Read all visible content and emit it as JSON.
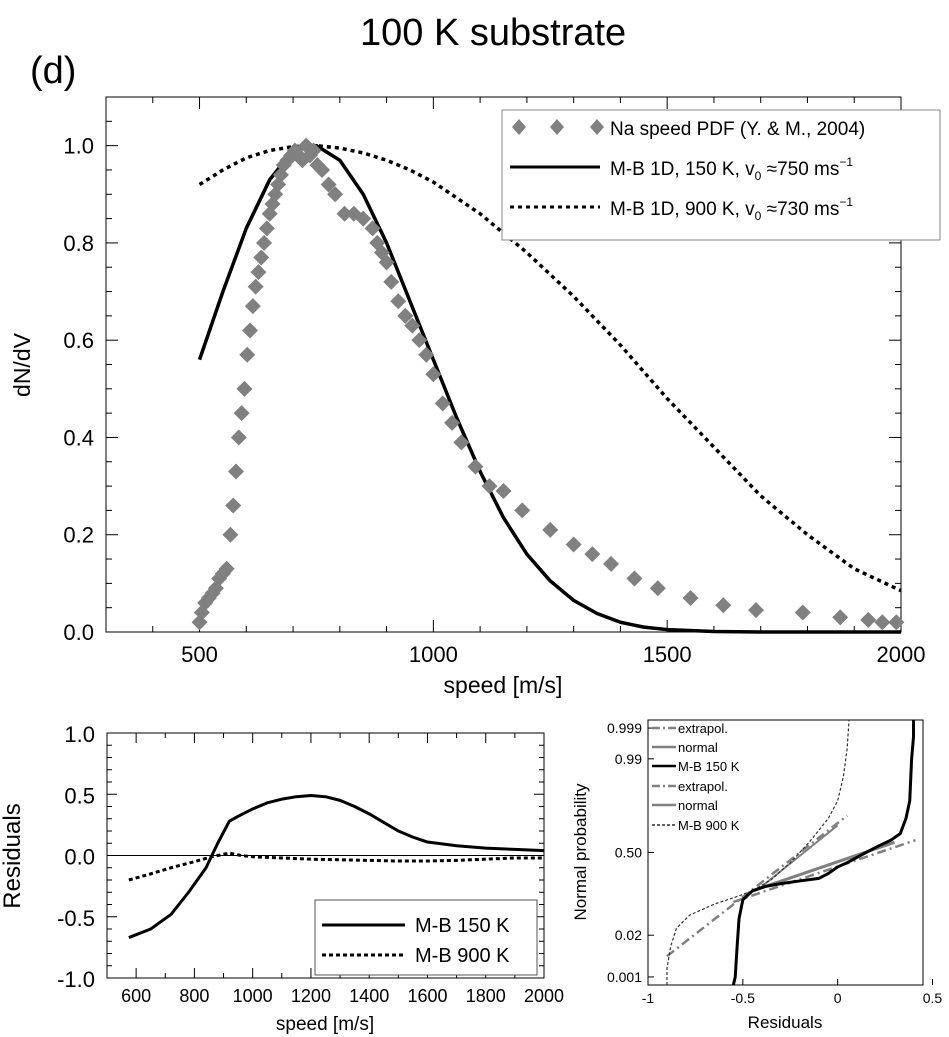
{
  "figure": {
    "title": "100 K substrate",
    "panel_label": "(d)"
  },
  "colors": {
    "data_gray": "#808080",
    "mb150": "#000000",
    "mb900": "#000000",
    "normal_gray": "#808080"
  },
  "chart_data": [
    {
      "id": "main",
      "type": "scatter+line",
      "xlabel": "speed [m/s]",
      "ylabel": "dN/dV",
      "xlim": [
        300,
        2000
      ],
      "ylim": [
        0,
        1.1
      ],
      "xticks": [
        500,
        1000,
        1500,
        2000
      ],
      "xtick_labels": [
        "500",
        "1000",
        "1500",
        "2000"
      ],
      "yticks": [
        0,
        0.2,
        0.4,
        0.6,
        0.8,
        1.0
      ],
      "ytick_labels": [
        "0.0",
        "0.2",
        "0.4",
        "0.6",
        "0.8",
        "1.0"
      ],
      "legend": {
        "placement": "top-right",
        "entries": [
          {
            "label": "Na speed PDF (Y. & M., 2004)",
            "style": "diamond"
          },
          {
            "label_parts": [
              "M-B 1D, 150 K, v",
              "0",
              " ≈750 ms",
              "−1"
            ],
            "style": "solid"
          },
          {
            "label_parts": [
              "M-B 1D, 900 K, v",
              "0",
              " ≈730 ms",
              "−1"
            ],
            "style": "dotted"
          }
        ]
      },
      "series": [
        {
          "name": "Na speed PDF (Y. & M., 2004)",
          "kind": "scatter",
          "x": [
            500,
            505,
            512,
            520,
            528,
            535,
            542,
            550,
            558,
            566,
            572,
            578,
            584,
            590,
            596,
            602,
            608,
            614,
            620,
            626,
            632,
            638,
            644,
            650,
            656,
            662,
            668,
            674,
            680,
            688,
            696,
            704,
            712,
            720,
            728,
            736,
            744,
            752,
            762,
            776,
            790,
            810,
            830,
            850,
            870,
            880,
            890,
            900,
            910,
            925,
            940,
            955,
            970,
            985,
            1000,
            1020,
            1040,
            1060,
            1090,
            1120,
            1150,
            1190,
            1250,
            1300,
            1340,
            1380,
            1430,
            1480,
            1550,
            1620,
            1690,
            1790,
            1870,
            1930,
            1960,
            1990
          ],
          "y": [
            0.02,
            0.04,
            0.06,
            0.07,
            0.08,
            0.09,
            0.11,
            0.12,
            0.13,
            0.2,
            0.26,
            0.33,
            0.4,
            0.45,
            0.5,
            0.57,
            0.62,
            0.67,
            0.71,
            0.74,
            0.77,
            0.8,
            0.83,
            0.86,
            0.88,
            0.9,
            0.92,
            0.94,
            0.96,
            0.97,
            0.98,
            0.99,
            0.98,
            0.97,
            1.0,
            0.98,
            0.99,
            0.96,
            0.95,
            0.92,
            0.9,
            0.86,
            0.86,
            0.85,
            0.83,
            0.8,
            0.78,
            0.76,
            0.72,
            0.68,
            0.65,
            0.63,
            0.6,
            0.57,
            0.53,
            0.47,
            0.43,
            0.39,
            0.34,
            0.3,
            0.29,
            0.25,
            0.21,
            0.18,
            0.16,
            0.14,
            0.11,
            0.09,
            0.07,
            0.055,
            0.045,
            0.04,
            0.03,
            0.025,
            0.02,
            0.02
          ]
        },
        {
          "name": "M-B 1D, 150 K",
          "kind": "line",
          "x": [
            500,
            550,
            600,
            650,
            700,
            750,
            800,
            850,
            900,
            950,
            1000,
            1050,
            1100,
            1150,
            1200,
            1250,
            1300,
            1350,
            1400,
            1450,
            1500,
            1600,
            1700,
            1800,
            2000
          ],
          "y": [
            0.56,
            0.7,
            0.83,
            0.93,
            0.99,
            1.0,
            0.97,
            0.9,
            0.8,
            0.68,
            0.56,
            0.44,
            0.33,
            0.235,
            0.16,
            0.105,
            0.065,
            0.038,
            0.02,
            0.01,
            0.005,
            0.001,
            0.0,
            0.0,
            0.0
          ]
        },
        {
          "name": "M-B 1D, 900 K",
          "kind": "line",
          "x": [
            500,
            550,
            600,
            650,
            700,
            750,
            800,
            850,
            900,
            950,
            1000,
            1100,
            1200,
            1300,
            1400,
            1500,
            1600,
            1700,
            1800,
            1900,
            2000
          ],
          "y": [
            0.92,
            0.95,
            0.975,
            0.99,
            0.998,
            1.0,
            0.995,
            0.985,
            0.97,
            0.95,
            0.925,
            0.86,
            0.78,
            0.69,
            0.59,
            0.48,
            0.38,
            0.28,
            0.2,
            0.13,
            0.085
          ]
        }
      ]
    },
    {
      "id": "residuals",
      "type": "line",
      "xlabel": "speed [m/s]",
      "ylabel": "Residuals",
      "xlim": [
        500,
        2000
      ],
      "ylim": [
        -1.0,
        1.0
      ],
      "xticks": [
        600,
        800,
        1000,
        1200,
        1400,
        1600,
        1800,
        2000
      ],
      "xtick_labels": [
        "600",
        "800",
        "1000",
        "1200",
        "1400",
        "1600",
        "1800",
        "2000"
      ],
      "yticks": [
        -1.0,
        -0.5,
        0.0,
        0.5,
        1.0
      ],
      "ytick_labels": [
        "-1.0",
        "-0.5",
        "0.0",
        "0.5",
        "1.0"
      ],
      "zero_line": true,
      "legend": {
        "placement": "bottom-right",
        "entries": [
          {
            "label": "M-B 150 K",
            "style": "solid"
          },
          {
            "label": "M-B 900 K",
            "style": "dotted"
          }
        ]
      },
      "series": [
        {
          "name": "M-B 150 K",
          "kind": "line",
          "x": [
            575,
            650,
            720,
            780,
            840,
            880,
            920,
            950,
            1000,
            1050,
            1100,
            1150,
            1200,
            1250,
            1300,
            1350,
            1400,
            1450,
            1500,
            1550,
            1600,
            1700,
            1800,
            1900,
            2000
          ],
          "y": [
            -0.67,
            -0.6,
            -0.48,
            -0.3,
            -0.1,
            0.1,
            0.28,
            0.32,
            0.38,
            0.43,
            0.46,
            0.48,
            0.49,
            0.48,
            0.45,
            0.4,
            0.34,
            0.27,
            0.2,
            0.15,
            0.11,
            0.08,
            0.06,
            0.05,
            0.04
          ]
        },
        {
          "name": "M-B 900 K",
          "kind": "line",
          "x": [
            575,
            650,
            720,
            800,
            860,
            920,
            960,
            1000,
            1100,
            1200,
            1300,
            1400,
            1500,
            1600,
            1700,
            1800,
            1900,
            2000
          ],
          "y": [
            -0.2,
            -0.15,
            -0.1,
            -0.05,
            -0.01,
            0.02,
            0.0,
            -0.01,
            -0.02,
            -0.03,
            -0.035,
            -0.04,
            -0.045,
            -0.045,
            -0.04,
            -0.03,
            -0.02,
            -0.02
          ]
        }
      ]
    },
    {
      "id": "normal-probability",
      "type": "line",
      "xlabel": "Residuals",
      "ylabel": "Normal probability",
      "xlim": [
        -1.0,
        0.45
      ],
      "ylim": [
        0.0005,
        0.9995
      ],
      "xticks": [
        -1,
        -0.5,
        0,
        0.5
      ],
      "xtick_labels": [
        "-1",
        "-0.5",
        "0",
        "0.5"
      ],
      "yticks": [
        0.001,
        0.02,
        0.5,
        0.99,
        0.999
      ],
      "ytick_labels": [
        "0.001",
        "0.02",
        "0.50",
        "0.99",
        "0.999"
      ],
      "legend": {
        "placement": "top-left",
        "entries": [
          {
            "label": "extrapol.",
            "style": "dashdot-gray"
          },
          {
            "label": "normal",
            "style": "solid-gray"
          },
          {
            "label": "M-B 150 K",
            "style": "solid-black"
          },
          {
            "label": "extrapol.",
            "style": "dashdot-gray"
          },
          {
            "label": "normal",
            "style": "solid-gray"
          },
          {
            "label": "M-B 900 K",
            "style": "dashed-black"
          }
        ]
      },
      "series": [
        {
          "name": "M-B 150 K",
          "kind": "line",
          "x": [
            -0.55,
            -0.54,
            -0.53,
            -0.52,
            -0.5,
            -0.45,
            -0.38,
            -0.3,
            -0.2,
            -0.1,
            -0.05,
            0.0,
            0.05,
            0.1,
            0.2,
            0.28,
            0.33,
            0.36,
            0.38,
            0.39,
            0.4,
            0.4
          ],
          "y": [
            0.0005,
            0.001,
            0.01,
            0.05,
            0.12,
            0.17,
            0.2,
            0.22,
            0.24,
            0.26,
            0.3,
            0.36,
            0.4,
            0.45,
            0.55,
            0.62,
            0.68,
            0.8,
            0.9,
            0.99,
            0.998,
            0.9995
          ]
        },
        {
          "name": "M-B 900 K",
          "kind": "line",
          "x": [
            -0.9,
            -0.9,
            -0.88,
            -0.85,
            -0.78,
            -0.65,
            -0.55,
            -0.45,
            -0.35,
            -0.25,
            -0.15,
            -0.05,
            0.0,
            0.03,
            0.05,
            0.06
          ],
          "y": [
            0.0005,
            0.002,
            0.01,
            0.03,
            0.06,
            0.1,
            0.13,
            0.17,
            0.25,
            0.4,
            0.6,
            0.8,
            0.9,
            0.97,
            0.995,
            0.9995
          ]
        },
        {
          "name": "extrapol. 150 K",
          "kind": "line",
          "x": [
            -0.55,
            0.41
          ],
          "y": [
            0.11,
            0.62
          ]
        },
        {
          "name": "normal 150 K",
          "kind": "line",
          "x": [
            -0.45,
            0.3
          ],
          "y": [
            0.17,
            0.6
          ]
        },
        {
          "name": "extrapol. 900 K",
          "kind": "line",
          "x": [
            -0.9,
            0.05
          ],
          "y": [
            0.005,
            0.82
          ]
        },
        {
          "name": "normal 900 K",
          "kind": "line",
          "x": [
            -0.4,
            0.0
          ],
          "y": [
            0.2,
            0.75
          ]
        }
      ]
    }
  ]
}
